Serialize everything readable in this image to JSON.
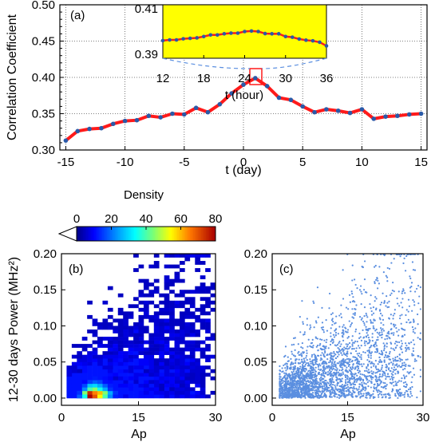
{
  "chart_data": [
    {
      "panel": "(a)",
      "type": "line",
      "xlabel": "t (day)",
      "ylabel": "Correlation Coefficient",
      "xlim": [
        -15.5,
        15.5
      ],
      "ylim": [
        0.3,
        0.5
      ],
      "xticks": [
        "-15",
        "-10",
        "-5",
        "0",
        "5",
        "10",
        "15"
      ],
      "yticks": [
        "0.30",
        "0.35",
        "0.40",
        "0.45",
        "0.50"
      ],
      "grid": "dotted vertical at x ticks, dotted horizontal at y ticks",
      "line_color": "#ff1a1a",
      "marker_color": "#2a5aa8",
      "x": [
        -15,
        -14,
        -13,
        -12,
        -11,
        -10,
        -9,
        -8,
        -7,
        -6,
        -5,
        -4,
        -3,
        -2,
        -1,
        0,
        1,
        2,
        3,
        4,
        5,
        6,
        7,
        8,
        9,
        10,
        11,
        12,
        13,
        14,
        15
      ],
      "values": [
        0.313,
        0.326,
        0.329,
        0.33,
        0.336,
        0.34,
        0.341,
        0.347,
        0.345,
        0.35,
        0.349,
        0.358,
        0.352,
        0.363,
        0.378,
        0.39,
        0.399,
        0.388,
        0.372,
        0.369,
        0.36,
        0.352,
        0.356,
        0.354,
        0.351,
        0.356,
        0.343,
        0.346,
        0.347,
        0.349,
        0.35
      ]
    },
    {
      "panel": "(a) inset",
      "type": "line",
      "xlabel": "t (hour)",
      "xlim": [
        12,
        36
      ],
      "ylim": [
        0.39,
        0.41
      ],
      "xticks": [
        "12",
        "18",
        "24",
        "30",
        "36"
      ],
      "yticks": [
        "0.39",
        "0.41"
      ],
      "background": "#ffff00",
      "x": [
        12,
        13,
        14,
        15,
        16,
        17,
        18,
        19,
        20,
        21,
        22,
        23,
        24,
        25,
        26,
        27,
        28,
        29,
        30,
        31,
        32,
        33,
        34,
        35,
        36
      ],
      "values": [
        0.396,
        0.3963,
        0.3963,
        0.3968,
        0.397,
        0.3972,
        0.3978,
        0.3985,
        0.3985,
        0.399,
        0.3993,
        0.3993,
        0.4,
        0.4002,
        0.4,
        0.3991,
        0.399,
        0.399,
        0.3978,
        0.3975,
        0.3967,
        0.3962,
        0.3959,
        0.3953,
        0.3937
      ]
    },
    {
      "panel": "(b)",
      "type": "heatmap",
      "xlabel": "Ap",
      "ylabel": "12-30 days Power (MHz²)",
      "xlim": [
        0,
        30
      ],
      "ylim": [
        -0.01,
        0.2
      ],
      "xticks": [
        "0",
        "15",
        "30"
      ],
      "yticks": [
        "0.00",
        "0.05",
        "0.10",
        "0.15",
        "0.20"
      ],
      "colorbar": {
        "title": "Density",
        "ticks": [
          "0",
          "20",
          "40",
          "60",
          "80"
        ],
        "range": [
          0,
          80
        ]
      },
      "cells": [
        [
          5,
          0.0,
          80
        ],
        [
          6,
          0.0,
          70
        ],
        [
          7,
          0.0,
          55
        ],
        [
          5,
          0.005,
          75
        ],
        [
          6,
          0.005,
          65
        ],
        [
          7,
          0.005,
          60
        ],
        [
          4,
          0.005,
          45
        ],
        [
          8,
          0.005,
          45
        ],
        [
          4,
          0.0,
          35
        ],
        [
          8,
          0.0,
          40
        ],
        [
          6,
          0.01,
          45
        ],
        [
          5,
          0.01,
          40
        ],
        [
          7,
          0.01,
          35
        ],
        [
          3,
          0.0,
          18
        ],
        [
          9,
          0.0,
          22
        ],
        [
          9,
          0.005,
          25
        ],
        [
          4,
          0.01,
          22
        ],
        [
          8,
          0.01,
          25
        ],
        [
          5,
          0.015,
          28
        ],
        [
          6,
          0.015,
          30
        ],
        [
          7,
          0.015,
          25
        ],
        [
          3,
          0.005,
          14
        ],
        [
          10,
          0.0,
          12
        ],
        [
          10,
          0.005,
          14
        ],
        [
          4,
          0.015,
          16
        ],
        [
          8,
          0.015,
          18
        ],
        [
          6,
          0.02,
          18
        ],
        [
          7,
          0.02,
          16
        ],
        [
          5,
          0.02,
          15
        ],
        [
          9,
          0.01,
          14
        ],
        [
          9,
          0.015,
          12
        ],
        [
          6,
          0.025,
          12
        ],
        [
          8,
          0.02,
          11
        ],
        [
          4,
          0.02,
          10
        ]
      ]
    },
    {
      "panel": "(c)",
      "type": "scatter",
      "xlabel": "Ap",
      "xlim": [
        0,
        30
      ],
      "ylim": [
        -0.01,
        0.2
      ],
      "xticks": [
        "0",
        "15",
        "30"
      ],
      "yticks": [
        "0.00",
        "0.05",
        "0.10",
        "0.15",
        "0.20"
      ],
      "point_color": "#5b8fe0"
    }
  ]
}
